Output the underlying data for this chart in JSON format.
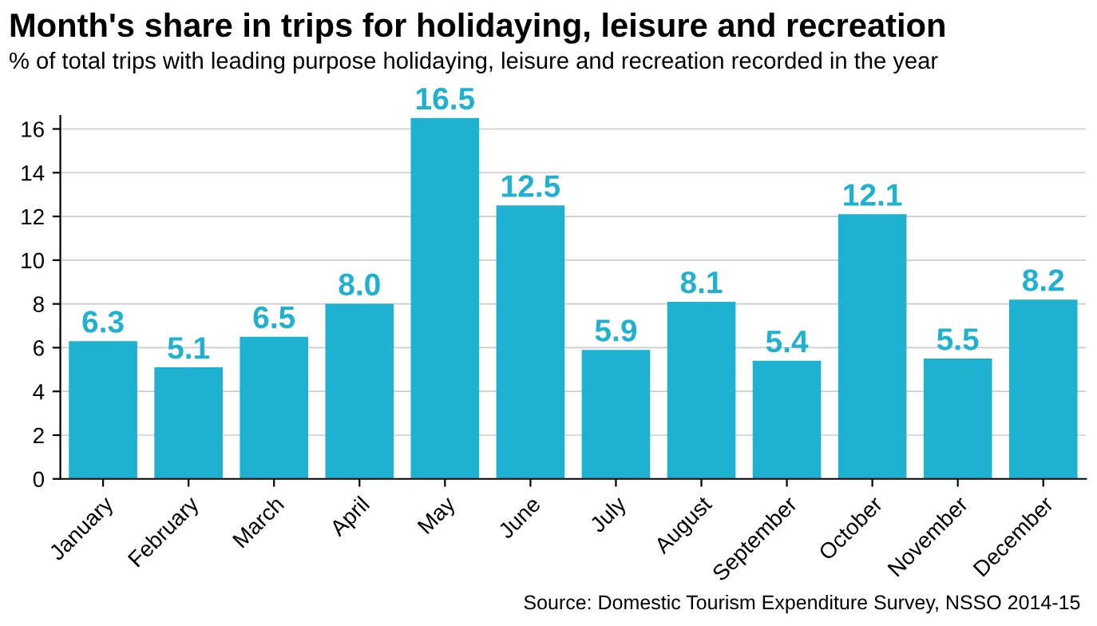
{
  "chart_data": {
    "type": "bar",
    "title": "Month's share in trips for holidaying, leisure and recreation",
    "subtitle": "% of total trips with leading purpose holidaying, leisure and recreation recorded in the year",
    "categories": [
      "January",
      "February",
      "March",
      "April",
      "May",
      "June",
      "July",
      "August",
      "September",
      "October",
      "November",
      "December"
    ],
    "values": [
      6.3,
      5.1,
      6.5,
      8.0,
      16.5,
      12.5,
      5.9,
      8.1,
      5.4,
      12.1,
      5.5,
      8.2
    ],
    "value_labels": [
      "6.3",
      "5.1",
      "6.5",
      "8.0",
      "16.5",
      "12.5",
      "5.9",
      "8.1",
      "5.4",
      "12.1",
      "5.5",
      "8.2"
    ],
    "color": "#1fb1d0",
    "ylim": [
      0,
      16.6
    ],
    "yticks": [
      0,
      2,
      4,
      6,
      8,
      10,
      12,
      14,
      16
    ],
    "grid": "y",
    "annotations": [
      "Source: Domestic Tourism Expenditure Survey, NSSO 2014-15"
    ]
  }
}
